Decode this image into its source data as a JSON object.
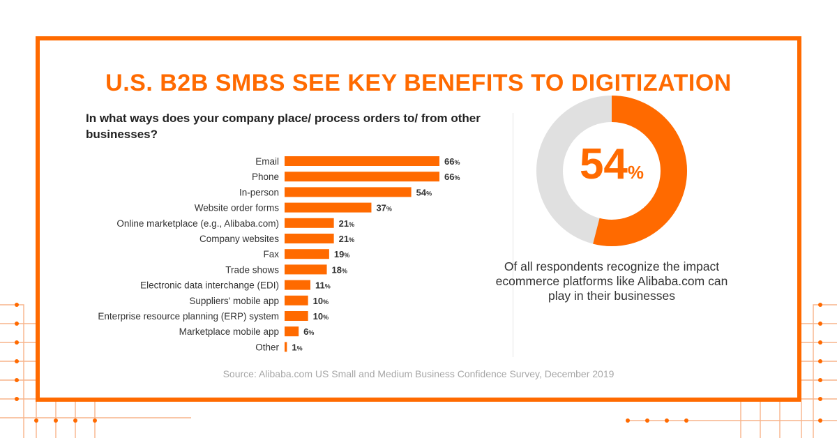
{
  "title": "U.S. B2B SMBS SEE KEY BENEFITS TO DIGITIZATION",
  "question": "In what ways does your company place/ process orders to/ from other businesses?",
  "highlight": {
    "value": "54",
    "unit": "%",
    "fraction": 0.54,
    "caption": "Of all respondents recognize the impact ecommerce platforms like Alibaba.com can play in their businesses"
  },
  "source": "Source: Alibaba.com US Small and Medium Business Confidence Survey, December 2019",
  "colors": {
    "accent": "#ff6a00",
    "track": "#e0e0e0",
    "circuit": "#f7b48a"
  },
  "chart_data": {
    "type": "bar",
    "orientation": "horizontal",
    "categories": [
      "Email",
      "Phone",
      "In-person",
      "Website order forms",
      "Online marketplace (e.g., Alibaba.com)",
      "Company websites",
      "Fax",
      "Trade shows",
      "Electronic data interchange (EDI)",
      "Suppliers' mobile app",
      "Enterprise resource planning (ERP) system",
      "Marketplace mobile app",
      "Other"
    ],
    "values": [
      66,
      66,
      54,
      37,
      21,
      21,
      19,
      18,
      11,
      10,
      10,
      6,
      1
    ],
    "value_suffix": "%",
    "xlim": [
      0,
      66
    ],
    "grid": false
  }
}
